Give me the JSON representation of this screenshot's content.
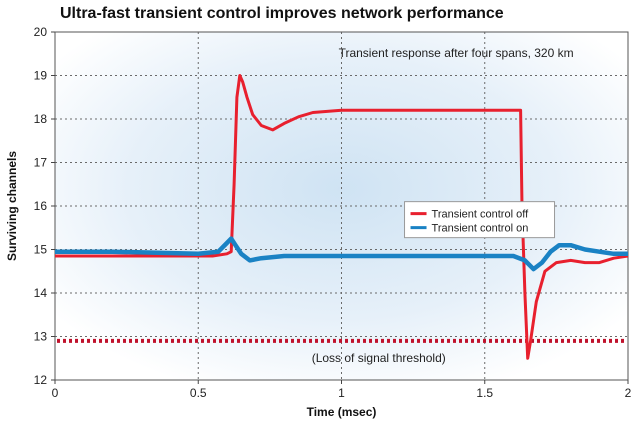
{
  "chart_data": {
    "type": "line",
    "title": "Ultra-fast transient control improves network performance",
    "xlabel": "Time (msec)",
    "ylabel": "Surviving channels",
    "xlim": [
      0,
      2
    ],
    "ylim": [
      12,
      20
    ],
    "x_ticks": [
      0,
      0.5,
      1,
      1.5,
      2
    ],
    "x_tick_labels": [
      "0",
      "0.5",
      "1",
      "1.5",
      "2"
    ],
    "y_ticks": [
      12,
      13,
      14,
      15,
      16,
      17,
      18,
      19,
      20
    ],
    "y_tick_labels": [
      "12",
      "13",
      "14",
      "15",
      "16",
      "17",
      "18",
      "19",
      "20"
    ],
    "grid": true,
    "legend_position": "center-right",
    "annotations": {
      "top": "Transient response after four spans, 320 km",
      "threshold": "(Loss of signal threshold)"
    },
    "threshold": {
      "value": 12.9,
      "color": "#c0122c",
      "style": "dotted"
    },
    "series": [
      {
        "name": "Transient control off",
        "color": "#e8202e",
        "x": [
          0,
          0.3,
          0.55,
          0.6,
          0.615,
          0.625,
          0.635,
          0.645,
          0.655,
          0.67,
          0.69,
          0.72,
          0.76,
          0.8,
          0.85,
          0.9,
          1.0,
          1.2,
          1.4,
          1.6,
          1.625,
          1.63,
          1.64,
          1.65,
          1.66,
          1.68,
          1.71,
          1.75,
          1.8,
          1.85,
          1.9,
          1.95,
          2.0
        ],
        "y": [
          14.85,
          14.85,
          14.85,
          14.9,
          14.95,
          16.5,
          18.5,
          19.0,
          18.85,
          18.5,
          18.1,
          17.85,
          17.75,
          17.9,
          18.05,
          18.15,
          18.2,
          18.2,
          18.2,
          18.2,
          18.2,
          16.0,
          14.0,
          12.5,
          12.9,
          13.8,
          14.5,
          14.7,
          14.75,
          14.7,
          14.7,
          14.8,
          14.85
        ]
      },
      {
        "name": "Transient control on",
        "color": "#1a82c4",
        "x": [
          0,
          0.2,
          0.5,
          0.57,
          0.6,
          0.615,
          0.63,
          0.65,
          0.68,
          0.72,
          0.8,
          1.0,
          1.2,
          1.4,
          1.6,
          1.64,
          1.67,
          1.7,
          1.73,
          1.76,
          1.8,
          1.85,
          1.9,
          1.95,
          2.0
        ],
        "y": [
          14.95,
          14.95,
          14.9,
          14.95,
          15.15,
          15.25,
          15.1,
          14.9,
          14.75,
          14.8,
          14.85,
          14.85,
          14.85,
          14.85,
          14.85,
          14.75,
          14.55,
          14.7,
          14.95,
          15.1,
          15.1,
          15.0,
          14.95,
          14.9,
          14.9
        ]
      }
    ]
  }
}
